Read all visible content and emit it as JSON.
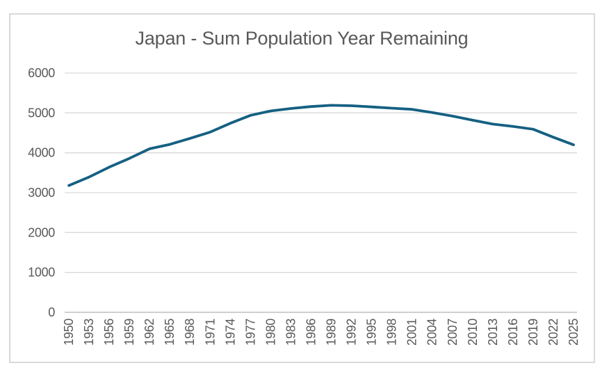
{
  "chart_data": {
    "type": "line",
    "title": "Japan - Sum Population Year Remaining",
    "categories": [
      "1950",
      "1953",
      "1956",
      "1959",
      "1962",
      "1965",
      "1968",
      "1971",
      "1974",
      "1977",
      "1980",
      "1983",
      "1986",
      "1989",
      "1992",
      "1995",
      "1998",
      "2001",
      "2004",
      "2007",
      "2010",
      "2013",
      "2016",
      "2019",
      "2022",
      "2025"
    ],
    "values": [
      3180,
      3390,
      3640,
      3860,
      4100,
      4210,
      4360,
      4520,
      4740,
      4940,
      5050,
      5110,
      5160,
      5190,
      5180,
      5150,
      5120,
      5090,
      5010,
      4920,
      4820,
      4720,
      4660,
      4590,
      4390,
      4200
    ],
    "xlabel": "",
    "ylabel": "",
    "ylim": [
      0,
      6000
    ],
    "yticks": [
      0,
      1000,
      2000,
      3000,
      4000,
      5000,
      6000
    ],
    "grid": "horizontal",
    "legend": "none",
    "x_label_rotation_deg": -90,
    "colors": {
      "line": "#156082",
      "gridline": "#D9D9D9",
      "axis_line": "#BFBFBF",
      "text": "#595959",
      "border": "#D9D9D9",
      "background": "#FFFFFF"
    }
  }
}
